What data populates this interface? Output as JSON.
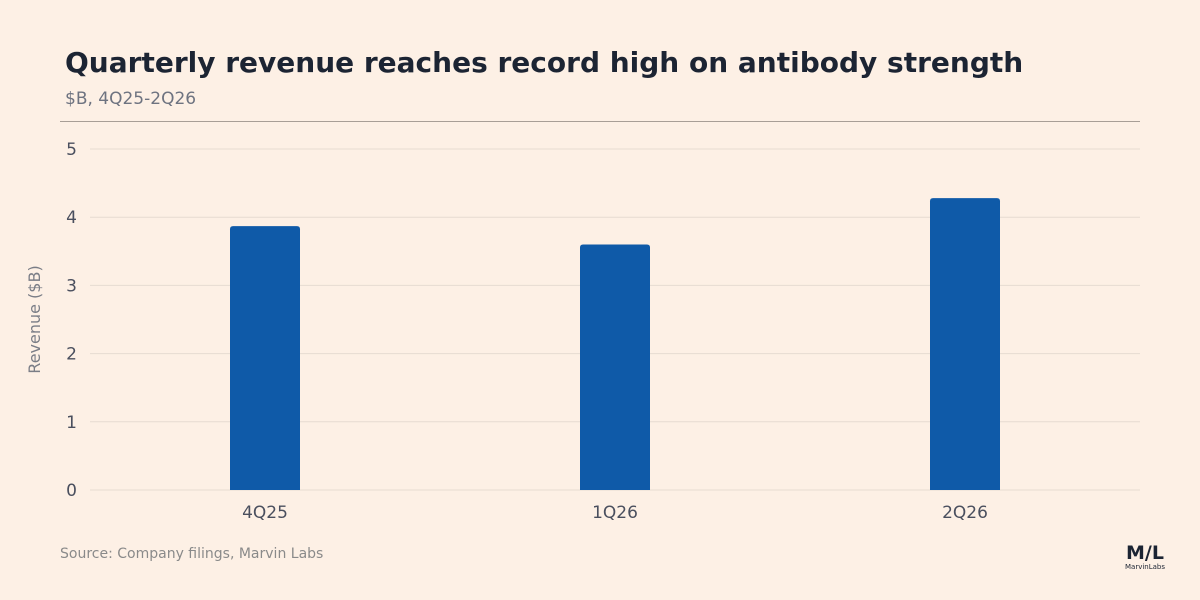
{
  "title": "Quarterly revenue reaches record high on antibody strength",
  "subtitle": "$B, 4Q25-2Q26",
  "source": "Source: Company filings, Marvin Labs",
  "logo": {
    "mark": "M/L",
    "name": "MarvinLabs"
  },
  "colors": {
    "background": "#fdf0e5",
    "bar": "#0f5aa8",
    "grid": "#e6dbd1",
    "title": "#1c2433"
  },
  "chart_data": {
    "type": "bar",
    "categories": [
      "4Q25",
      "1Q26",
      "2Q26"
    ],
    "values": [
      3.87,
      3.6,
      4.28
    ],
    "ylabel": "Revenue ($B)",
    "xlabel": "",
    "ylim": [
      0,
      5
    ],
    "yticks": [
      0,
      1,
      2,
      3,
      4,
      5
    ],
    "grid": true,
    "legend": "none"
  }
}
